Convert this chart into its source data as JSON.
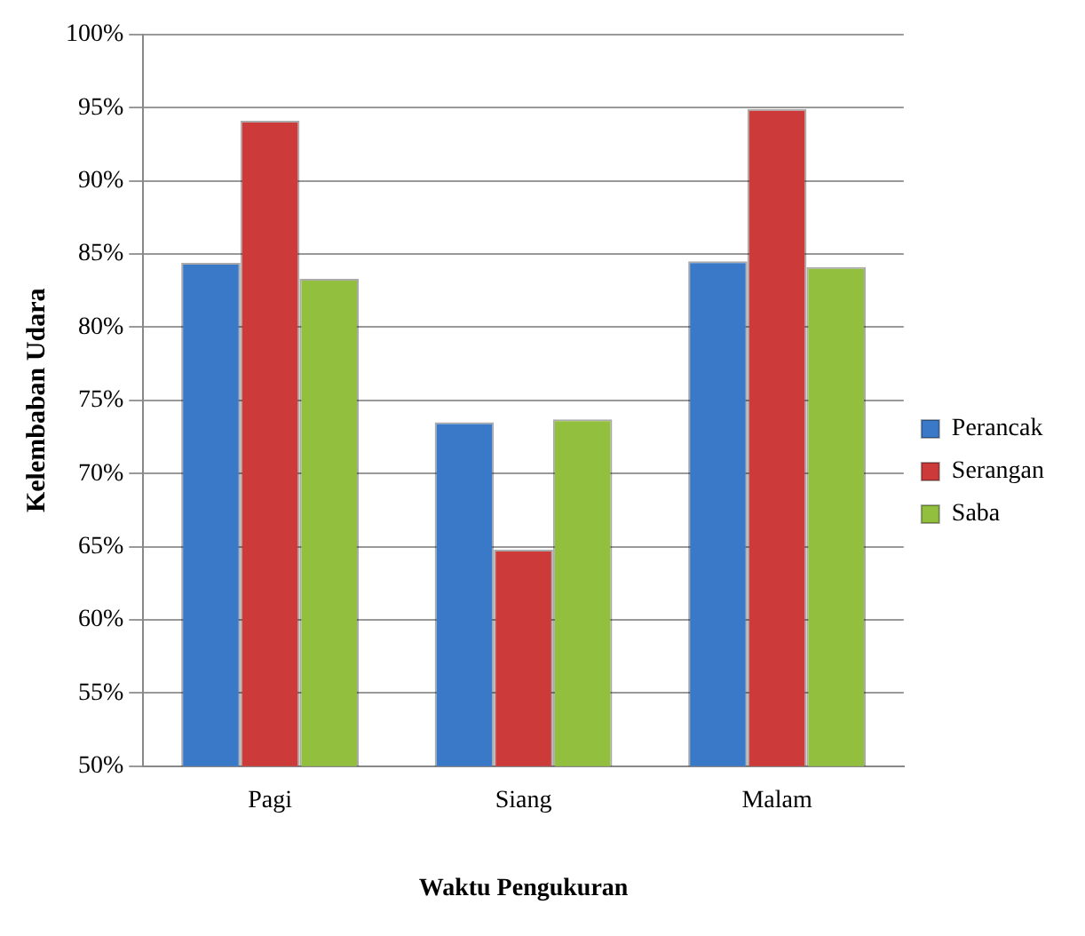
{
  "chart_data": {
    "type": "bar",
    "xlabel": "Waktu Pengukuran",
    "ylabel": "Kelembaban Udara",
    "categories": [
      "Pagi",
      "Siang",
      "Malam"
    ],
    "series": [
      {
        "name": "Perancak",
        "color": "#3a78c8",
        "values": [
          84.4,
          73.5,
          84.5
        ]
      },
      {
        "name": "Serangan",
        "color": "#cc3a3a",
        "values": [
          94.1,
          64.8,
          94.9
        ]
      },
      {
        "name": "Saba",
        "color": "#92bf3e",
        "values": [
          83.3,
          73.7,
          84.1
        ]
      }
    ],
    "ylim": [
      50,
      100
    ],
    "yticks": [
      {
        "value": 50,
        "label": "50%"
      },
      {
        "value": 55,
        "label": "55%"
      },
      {
        "value": 60,
        "label": "60%"
      },
      {
        "value": 65,
        "label": "65%"
      },
      {
        "value": 70,
        "label": "70%"
      },
      {
        "value": 75,
        "label": "75%"
      },
      {
        "value": 80,
        "label": "80%"
      },
      {
        "value": 85,
        "label": "85%"
      },
      {
        "value": 90,
        "label": "90%"
      },
      {
        "value": 95,
        "label": "95%"
      },
      {
        "value": 100,
        "label": "100%"
      }
    ],
    "grid": "y",
    "legend": "right"
  }
}
